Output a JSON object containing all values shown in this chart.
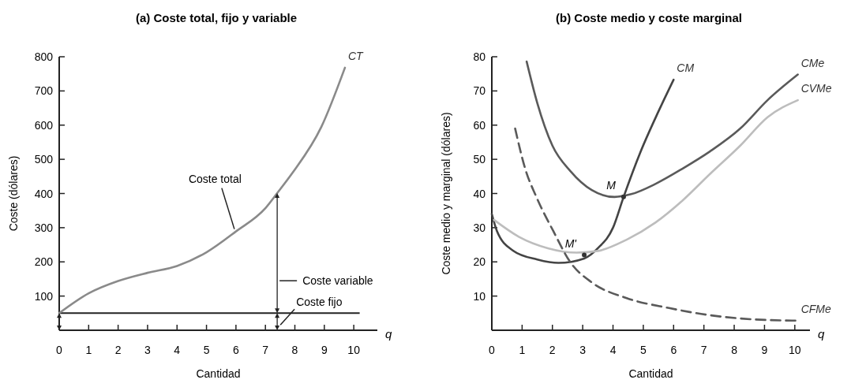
{
  "chart_data": [
    {
      "type": "line",
      "title": "(a)  Coste total, fijo y variable",
      "xlabel": "Cantidad",
      "ylabel": "Coste (dólares)",
      "xlim": [
        0,
        10.8
      ],
      "xticks": [
        0,
        1,
        2,
        3,
        4,
        5,
        6,
        7,
        8,
        9,
        10
      ],
      "ylim": [
        0,
        800
      ],
      "yticks": [
        100,
        200,
        300,
        400,
        500,
        600,
        700,
        800
      ],
      "grid": false,
      "legend": false,
      "marker": "none",
      "series": [
        {
          "name": "CT",
          "color": "#8a8a8a",
          "x": [
            0,
            1,
            2,
            3,
            4,
            5,
            6,
            7,
            7.4,
            7.9,
            8.9,
            9.7
          ],
          "values": [
            50,
            108,
            144,
            168,
            188,
            228,
            289,
            357,
            401,
            458,
            595,
            768
          ]
        }
      ],
      "ref_lines": [
        {
          "axis": "y",
          "value": 50,
          "color": "#222222"
        }
      ],
      "annotations": [
        {
          "text": "Coste total",
          "x": 6,
          "y": 289
        },
        "Coste variable",
        {
          "text": "Coste fijo",
          "x": 7.4,
          "y": 50
        },
        "q"
      ]
    },
    {
      "type": "line",
      "title": "(b)  Coste medio y coste marginal",
      "xlabel": "Cantidad",
      "ylabel": "Coste medio y marginal (dólares)",
      "xlim": [
        0,
        10.5
      ],
      "xticks": [
        0,
        1,
        2,
        3,
        4,
        5,
        6,
        7,
        8,
        9,
        10
      ],
      "ylim": [
        0,
        80
      ],
      "yticks": [
        10,
        20,
        30,
        40,
        50,
        60,
        70,
        80
      ],
      "grid": false,
      "legend": false,
      "marker": "none",
      "series": [
        {
          "name": "CM",
          "color": "#444444",
          "x": [
            0,
            0.17,
            0.7,
            1.5,
            2.2,
            3.05,
            3.5,
            4,
            4.35,
            4.9,
            5.5,
            6
          ],
          "values": [
            34,
            29,
            23.3,
            20.7,
            19.7,
            21,
            24,
            30,
            39,
            52,
            64,
            73.3
          ]
        },
        {
          "name": "CMe",
          "color": "#5a5a5a",
          "x": [
            1.15,
            1.5,
            2,
            2.6,
            3.3,
            4.05,
            4.6,
            5.4,
            6.3,
            7.2,
            8.2,
            9.1,
            10.1
          ],
          "values": [
            78.6,
            66.5,
            54,
            46.5,
            41,
            39,
            39.8,
            42.8,
            47.3,
            52.3,
            59,
            67.3,
            74.8
          ]
        },
        {
          "name": "CVMe",
          "color": "#bdbdbd",
          "x": [
            0.07,
            0.9,
            1.85,
            2.8,
            3.5,
            4.45,
            5.4,
            6.3,
            7.2,
            8.2,
            9.1,
            10.1
          ],
          "values": [
            32.3,
            27.3,
            24,
            22.7,
            23.2,
            26.5,
            31.5,
            38,
            45.7,
            54,
            62.3,
            67.3
          ]
        },
        {
          "name": "CFMe",
          "color": "#5a5a5a",
          "line_style": "dashed",
          "x": [
            0.77,
            1.1,
            1.47,
            2.03,
            2.6,
            3.3,
            4.45,
            5.85,
            7.2,
            8.6,
            10.1
          ],
          "values": [
            59,
            47.3,
            39,
            29,
            19.8,
            14,
            9.4,
            6.5,
            4.4,
            3.2,
            2.8
          ]
        }
      ],
      "annotations": [
        {
          "text": "M",
          "x": 4.35,
          "y": 39
        },
        {
          "text": "M'",
          "x": 3.05,
          "y": 22
        },
        "q"
      ]
    }
  ]
}
